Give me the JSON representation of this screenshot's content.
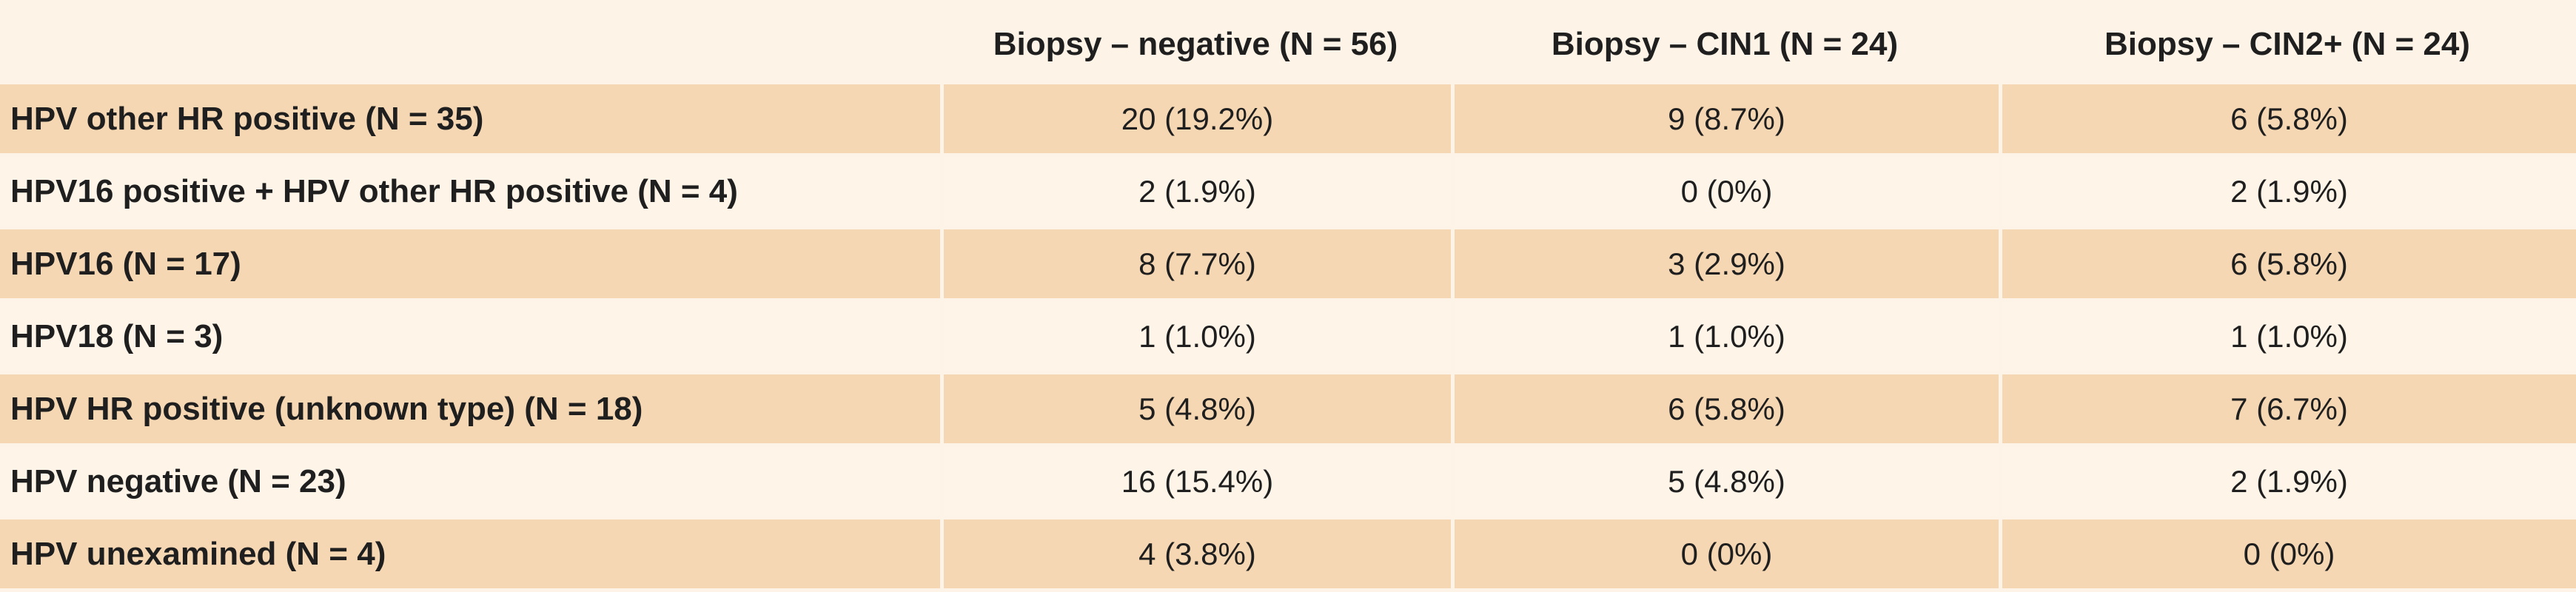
{
  "table": {
    "headers": [
      "",
      "Biopsy – negative (N = 56)",
      "Biopsy – CIN1 (N = 24)",
      "Biopsy – CIN2+ (N = 24)"
    ],
    "rows": [
      {
        "label": "HPV other HR positive (N = 35)",
        "cells": [
          "20 (19.2%)",
          "9 (8.7%)",
          "6 (5.8%)"
        ]
      },
      {
        "label": "HPV16 positive + HPV other HR positive (N = 4)",
        "cells": [
          "2 (1.9%)",
          "0 (0%)",
          "2 (1.9%)"
        ]
      },
      {
        "label": "HPV16 (N = 17)",
        "cells": [
          "8 (7.7%)",
          "3 (2.9%)",
          "6 (5.8%)"
        ]
      },
      {
        "label": "HPV18 (N = 3)",
        "cells": [
          "1 (1.0%)",
          "1 (1.0%)",
          "1 (1.0%)"
        ]
      },
      {
        "label": "HPV HR positive (unknown type) (N = 18)",
        "cells": [
          "5 (4.8%)",
          "6 (5.8%)",
          "7 (6.7%)"
        ]
      },
      {
        "label": "HPV negative (N = 23)",
        "cells": [
          "16 (15.4%)",
          "5 (4.8%)",
          "2 (1.9%)"
        ]
      },
      {
        "label": "HPV unexamined (N = 4)",
        "cells": [
          "4 (3.8%)",
          "0 (0%)",
          "0 (0%)"
        ]
      }
    ]
  },
  "colors": {
    "page_background": "#fdf3e6",
    "band_row": "#f6d7b3",
    "plain_row": "#fef4e7",
    "text": "#1f1f1f"
  }
}
